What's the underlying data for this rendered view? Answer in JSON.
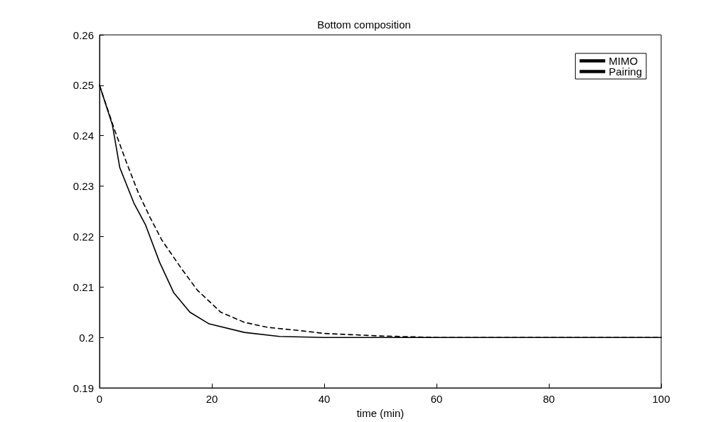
{
  "chart_data": {
    "type": "line",
    "title": "Bottom composition",
    "xlabel": "time (min)",
    "xlim": [
      0,
      100
    ],
    "xticks": [
      0,
      20,
      40,
      60,
      80,
      100
    ],
    "ylim": [
      0.19,
      0.26
    ],
    "yticks": [
      0.19,
      0.2,
      0.21,
      0.22,
      0.23,
      0.24,
      0.25,
      0.26
    ],
    "grid": false,
    "legend": "top right",
    "marker": "none",
    "series": [
      {
        "name": "MIMO",
        "color": "#000000",
        "line_style": "solid",
        "x": [
          0,
          2.3,
          3.6,
          6.1,
          8.2,
          10.7,
          13.2,
          16.1,
          19.5,
          25.8,
          32,
          40,
          60,
          80,
          100
        ],
        "values": [
          0.25,
          0.2421,
          0.2337,
          0.2267,
          0.2223,
          0.2149,
          0.2089,
          0.205,
          0.2027,
          0.201,
          0.2002,
          0.2,
          0.2,
          0.2,
          0.2
        ]
      },
      {
        "name": "Pairing",
        "color": "#000000",
        "line_style": "dashed",
        "x": [
          0,
          2.7,
          4.8,
          6.9,
          9,
          11.1,
          14.5,
          17.4,
          21.6,
          25.8,
          30,
          35.4,
          40,
          50,
          60,
          80,
          100
        ],
        "values": [
          0.25,
          0.2411,
          0.2347,
          0.2287,
          0.2238,
          0.2193,
          0.2138,
          0.2094,
          0.205,
          0.203,
          0.202,
          0.2014,
          0.2008,
          0.2003,
          0.2,
          0.2,
          0.2
        ]
      }
    ]
  }
}
